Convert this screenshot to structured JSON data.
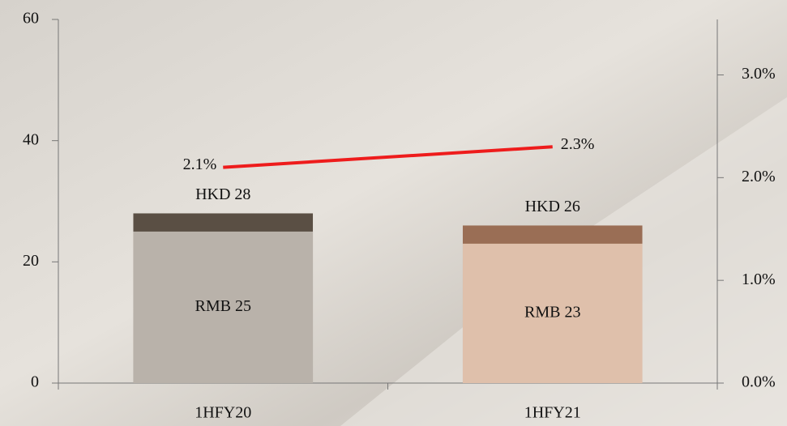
{
  "chart_data": {
    "type": "bar-line",
    "categories": [
      "1HFY20",
      "1HFY21"
    ],
    "series": [
      {
        "type": "bar",
        "colors": [
          "#5a4f44",
          "#9a6e55"
        ],
        "values": [
          28,
          26
        ],
        "value_labels": [
          "HKD 28",
          "HKD 26"
        ]
      },
      {
        "type": "bar",
        "colors": [
          "#b9b2aa",
          "#dfc0ab"
        ],
        "values": [
          25,
          23
        ],
        "value_labels": [
          "RMB 25",
          "RMB 23"
        ]
      },
      {
        "type": "line",
        "axis": "y2",
        "color": "#ee1c1c",
        "values": [
          2.1,
          2.3
        ],
        "value_labels": [
          "2.1%",
          "2.3%"
        ]
      }
    ],
    "ylim": [
      0,
      60
    ],
    "yticks": [
      0,
      20,
      40,
      60
    ],
    "y2lim": [
      0,
      3.54
    ],
    "y2ticks": [
      {
        "value": 0,
        "label": "0.0%"
      },
      {
        "value": 1,
        "label": "1.0%"
      },
      {
        "value": 2,
        "label": "2.0%"
      },
      {
        "value": 3,
        "label": "3.0%"
      }
    ]
  }
}
